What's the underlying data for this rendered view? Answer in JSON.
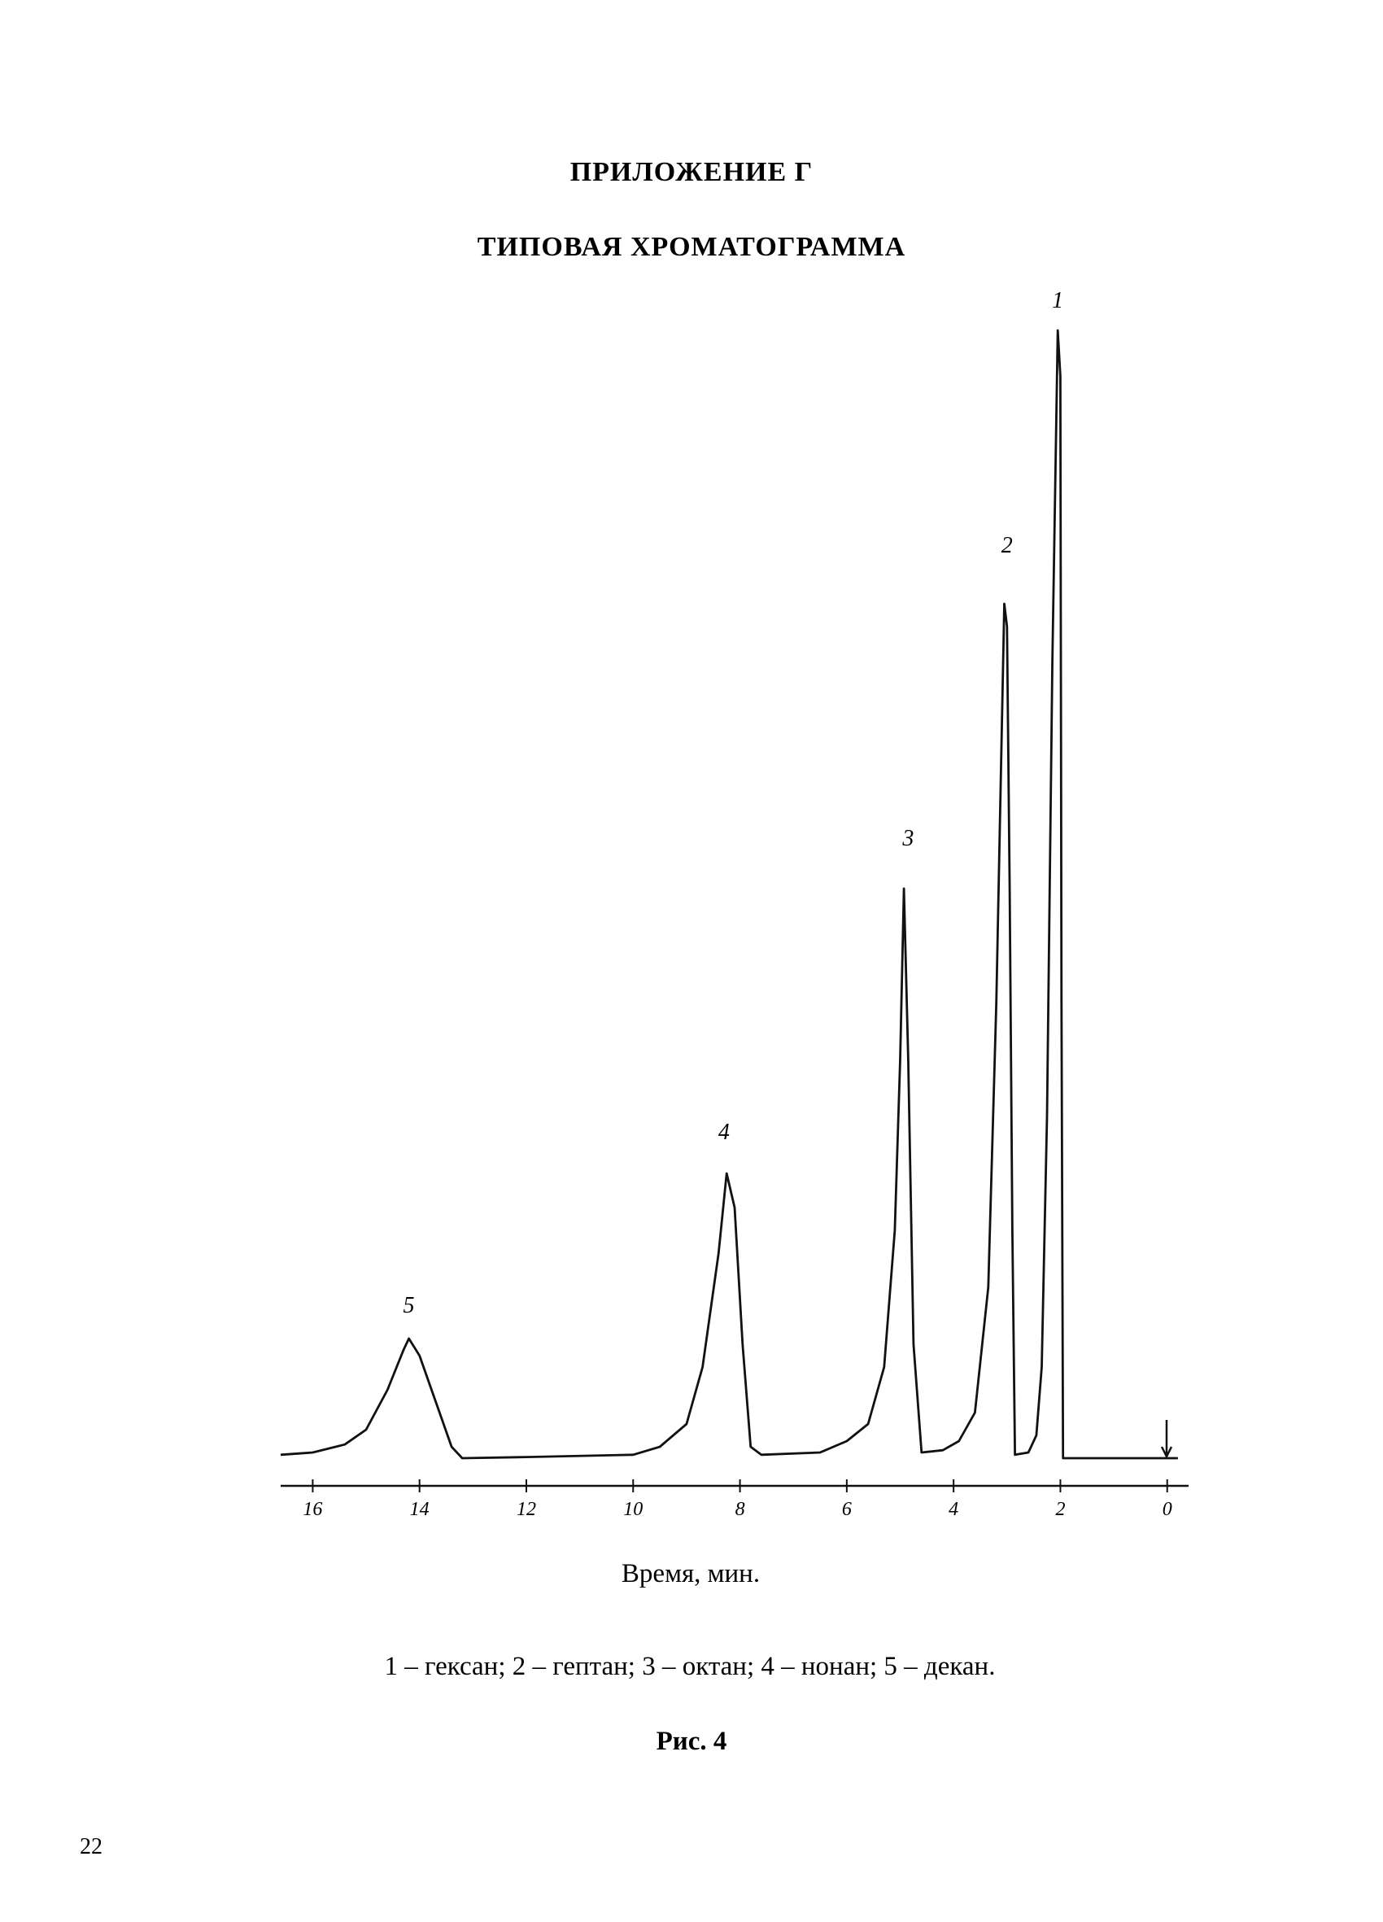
{
  "appendix": "ПРИЛОЖЕНИЕ Г",
  "chart_data": {
    "type": "line",
    "title": "ТИПОВАЯ ХРОМАТОГРАММА",
    "xlabel": "Время, мин.",
    "color": "#111111",
    "x": [
      16.6,
      16.0,
      15.4,
      15.0,
      14.6,
      14.3,
      14.2,
      14.0,
      13.7,
      13.4,
      13.2,
      12.0,
      10.0,
      9.5,
      9.0,
      8.7,
      8.4,
      8.25,
      8.1,
      7.95,
      7.8,
      7.6,
      6.5,
      6.0,
      5.6,
      5.3,
      5.1,
      5.0,
      4.93,
      4.85,
      4.75,
      4.6,
      4.2,
      3.9,
      3.6,
      3.35,
      3.2,
      3.05,
      3.0,
      2.95,
      2.9,
      2.85,
      2.6,
      2.45,
      2.35,
      2.25,
      2.15,
      2.05,
      2.0,
      1.98,
      1.95,
      0,
      -0.2
    ],
    "values": [
      0.3,
      0.5,
      1.2,
      2.5,
      6,
      9.5,
      10.5,
      9,
      5,
      1,
      0,
      0.1,
      0.3,
      1,
      3,
      8,
      18,
      25,
      22,
      10,
      1,
      0.3,
      0.5,
      1.5,
      3,
      8,
      20,
      35,
      50,
      35,
      10,
      0.5,
      0.7,
      1.5,
      4,
      15,
      40,
      75,
      73,
      50,
      20,
      0.3,
      0.5,
      2,
      8,
      30,
      70,
      99,
      95,
      40,
      0,
      0,
      0
    ],
    "annotations": [
      {
        "text": "1",
        "x": 2.05,
        "y": 101
      },
      {
        "text": "2",
        "x": 3.0,
        "y": 79.5
      },
      {
        "text": "3",
        "x": 4.85,
        "y": 53.8
      },
      {
        "text": "4",
        "x": 8.3,
        "y": 28
      },
      {
        "text": "5",
        "x": 14.2,
        "y": 12.8
      }
    ],
    "xlim": [
      16.6,
      -0.4
    ],
    "xticks": [
      16,
      14,
      12,
      10,
      8,
      6,
      4,
      2,
      0
    ],
    "ylim": [
      0,
      102
    ]
  },
  "figure_caption": "1 – гексан; 2 – гептан; 3 – октан; 4 – нонан; 5 – декан.",
  "figure_label": "Рис. 4",
  "page_number": "22"
}
